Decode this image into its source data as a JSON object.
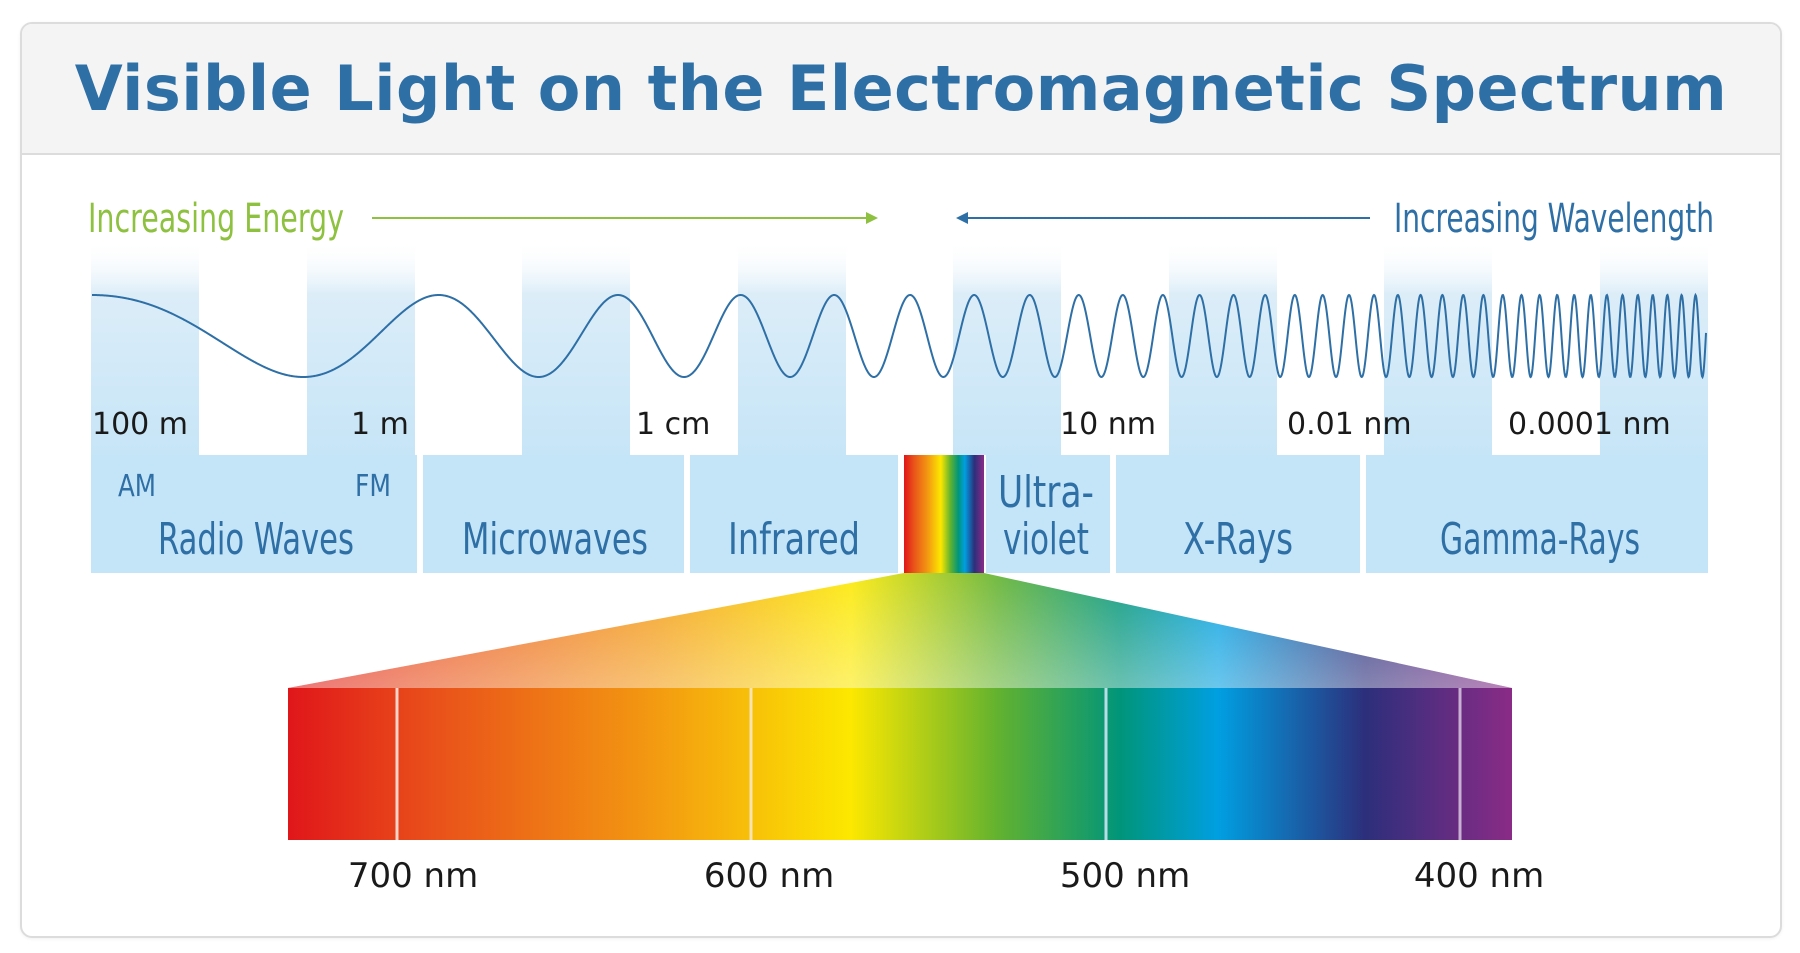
{
  "title": "Visible Light on the Electromagnetic Spectrum",
  "energy_label": "Increasing Energy",
  "wavelength_label": "Increasing Wavelength",
  "scale_labels": [
    "100 m",
    "1 m",
    "1 cm",
    "10 nm",
    "0.01 nm",
    "0.0001 nm"
  ],
  "bands": {
    "am": "AM",
    "fm": "FM",
    "radio": "Radio Waves",
    "microwaves": "Microwaves",
    "infrared": "Infrared",
    "ultraviolet_1": "Ultra-",
    "ultraviolet_2": "violet",
    "xrays": "X-Rays",
    "gamma": "Gamma-Rays"
  },
  "visible_ticks": [
    "700 nm",
    "600 nm",
    "500 nm",
    "400 nm"
  ],
  "colors": {
    "title": "#2e6fa6",
    "energy": "#8dc13f",
    "wavelength": "#2e6fa6",
    "band_fill": "#c4e4f7",
    "band_text": "#2e6fa6",
    "wave": "#2e6fa6"
  }
}
